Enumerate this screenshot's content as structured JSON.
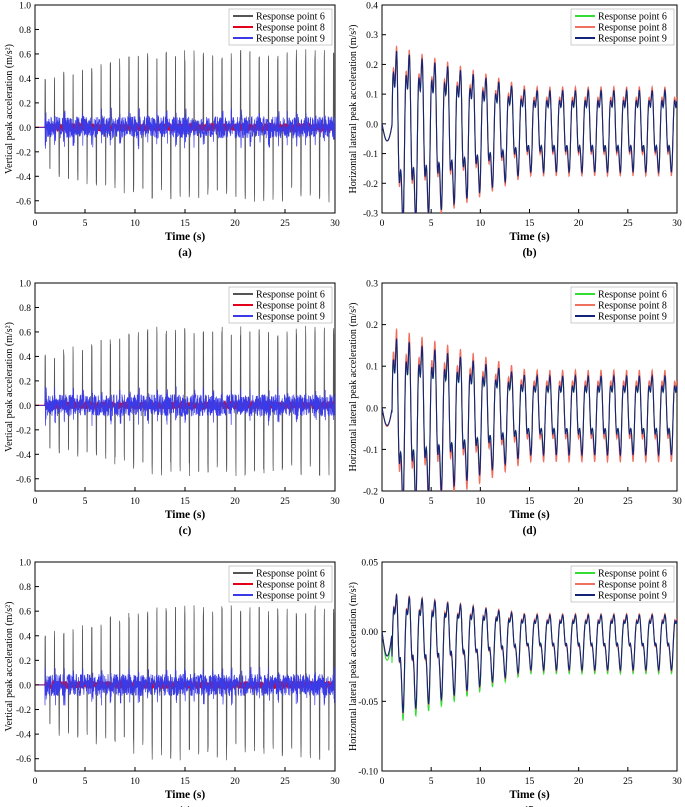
{
  "figure": {
    "legend_labels": [
      "Response point 6",
      "Response point 8",
      "Response point 9"
    ],
    "colors": {
      "vertical": [
        "#555555",
        "#e3001b",
        "#3a3ae6"
      ],
      "horizontal": [
        "#33dd33",
        "#f07060",
        "#14237a"
      ]
    }
  },
  "chart_data": [
    {
      "id": "a",
      "type": "line",
      "panel_label": "(a)",
      "title": "",
      "xlabel": "Time (s)",
      "ylabel": "Vertical peak acceleration (m/s²)",
      "xlim": [
        0,
        30
      ],
      "ylim": [
        -0.7,
        1.0
      ],
      "xticks": [
        0,
        5,
        10,
        15,
        20,
        25,
        30
      ],
      "yticks": [
        -0.6,
        -0.4,
        -0.2,
        0.0,
        0.2,
        0.4,
        0.6,
        0.8,
        1.0
      ],
      "ytick_labels": [
        "-0.6",
        "-0.4",
        "-0.2",
        "0.0",
        "0.2",
        "0.4",
        "0.6",
        "0.8",
        "1.0"
      ],
      "legend": "top-right",
      "kind": "vertical",
      "step_period_s": 0.93,
      "series": [
        {
          "name": "Response point 6",
          "peak_max": 0.64,
          "peak_min": -0.62,
          "description": "spiky impulses each step"
        },
        {
          "name": "Response point 8",
          "peak_max": 0.04,
          "peak_min": -0.04,
          "description": "small oscillation near zero"
        },
        {
          "name": "Response point 9",
          "peak_max": 0.23,
          "peak_min": -0.25,
          "description": "medium oscillation"
        }
      ]
    },
    {
      "id": "b",
      "type": "line",
      "panel_label": "(b)",
      "title": "",
      "xlabel": "Time (s)",
      "ylabel": "Horizontal lateral peak acceleration (m/s²)",
      "xlim": [
        0,
        30
      ],
      "ylim": [
        -0.3,
        0.4
      ],
      "xticks": [
        0,
        5,
        10,
        15,
        20,
        25,
        30
      ],
      "yticks": [
        -0.3,
        -0.2,
        -0.1,
        0.0,
        0.1,
        0.2,
        0.3,
        0.4
      ],
      "ytick_labels": [
        "-0.3",
        "-0.2",
        "-0.1",
        "0.0",
        "0.1",
        "0.2",
        "0.3",
        "0.4"
      ],
      "legend": "top-right",
      "kind": "horizontal",
      "step_period_s": 1.3,
      "series": [
        {
          "name": "Response point 6",
          "peak_max": 0.29,
          "peak_min": -0.23
        },
        {
          "name": "Response point 8",
          "peak_max": 0.29,
          "peak_min": -0.23
        },
        {
          "name": "Response point 9",
          "peak_max": 0.28,
          "peak_min": -0.23
        }
      ]
    },
    {
      "id": "c",
      "type": "line",
      "panel_label": "(c)",
      "title": "",
      "xlabel": "Time (s)",
      "ylabel": "Vertical peak acceleration (m/s²)",
      "xlim": [
        0,
        30
      ],
      "ylim": [
        -0.7,
        1.0
      ],
      "xticks": [
        0,
        5,
        10,
        15,
        20,
        25,
        30
      ],
      "yticks": [
        -0.6,
        -0.4,
        -0.2,
        0.0,
        0.2,
        0.4,
        0.6,
        0.8,
        1.0
      ],
      "ytick_labels": [
        "-0.6",
        "-0.4",
        "-0.2",
        "0.0",
        "0.2",
        "0.4",
        "0.6",
        "0.8",
        "1.0"
      ],
      "legend": "top-right",
      "kind": "vertical",
      "step_period_s": 0.93,
      "series": [
        {
          "name": "Response point 6",
          "peak_max": 0.65,
          "peak_min": -0.58
        },
        {
          "name": "Response point 8",
          "peak_max": 0.04,
          "peak_min": -0.04
        },
        {
          "name": "Response point 9",
          "peak_max": 0.22,
          "peak_min": -0.24
        }
      ]
    },
    {
      "id": "d",
      "type": "line",
      "panel_label": "(d)",
      "title": "",
      "xlabel": "Time (s)",
      "ylabel": "Horizontal lateral peak acceleration (m/s²)",
      "xlim": [
        0,
        30
      ],
      "ylim": [
        -0.2,
        0.3
      ],
      "xticks": [
        0,
        5,
        10,
        15,
        20,
        25,
        30
      ],
      "yticks": [
        -0.2,
        -0.1,
        0.0,
        0.1,
        0.2,
        0.3
      ],
      "ytick_labels": [
        "-0.2",
        "-0.1",
        "0.0",
        "0.1",
        "0.2",
        "0.3"
      ],
      "legend": "top-right",
      "kind": "horizontal",
      "step_period_s": 1.3,
      "series": [
        {
          "name": "Response point 6",
          "peak_max": 0.19,
          "peak_min": -0.17
        },
        {
          "name": "Response point 8",
          "peak_max": 0.21,
          "peak_min": -0.18
        },
        {
          "name": "Response point 9",
          "peak_max": 0.19,
          "peak_min": -0.17
        }
      ]
    },
    {
      "id": "e",
      "type": "line",
      "panel_label": "(e)",
      "title": "",
      "xlabel": "Time (s)",
      "ylabel": "Vertical peak acceleration (m/s²)",
      "xlim": [
        0,
        30
      ],
      "ylim": [
        -0.7,
        1.0
      ],
      "xticks": [
        0,
        5,
        10,
        15,
        20,
        25,
        30
      ],
      "yticks": [
        -0.6,
        -0.4,
        -0.2,
        0.0,
        0.2,
        0.4,
        0.6,
        0.8,
        1.0
      ],
      "ytick_labels": [
        "-0.6",
        "-0.4",
        "-0.2",
        "0.0",
        "0.2",
        "0.4",
        "0.6",
        "0.8",
        "1.0"
      ],
      "legend": "top-right",
      "kind": "vertical",
      "step_period_s": 0.93,
      "series": [
        {
          "name": "Response point 6",
          "peak_max": 0.65,
          "peak_min": -0.62
        },
        {
          "name": "Response point 8",
          "peak_max": 0.04,
          "peak_min": -0.04
        },
        {
          "name": "Response point 9",
          "peak_max": 0.21,
          "peak_min": -0.24
        }
      ]
    },
    {
      "id": "f",
      "type": "line",
      "panel_label": "(f)",
      "title": "",
      "xlabel": "Time (s)",
      "ylabel": "Horizontal lateral peak acceleration (m/s²)",
      "xlim": [
        0,
        30
      ],
      "ylim": [
        -0.1,
        0.05
      ],
      "xticks": [
        0,
        5,
        10,
        15,
        20,
        25,
        30
      ],
      "yticks": [
        -0.1,
        -0.05,
        0.0,
        0.05
      ],
      "ytick_labels": [
        "-0.10",
        "-0.05",
        "0.00",
        "0.05"
      ],
      "legend": "top-right",
      "kind": "horizontal",
      "step_period_s": 1.3,
      "series": [
        {
          "name": "Response point 6",
          "peak_max": 0.03,
          "peak_min": -0.082
        },
        {
          "name": "Response point 8",
          "peak_max": 0.03,
          "peak_min": -0.07
        },
        {
          "name": "Response point 9",
          "peak_max": 0.03,
          "peak_min": -0.07
        }
      ]
    }
  ]
}
